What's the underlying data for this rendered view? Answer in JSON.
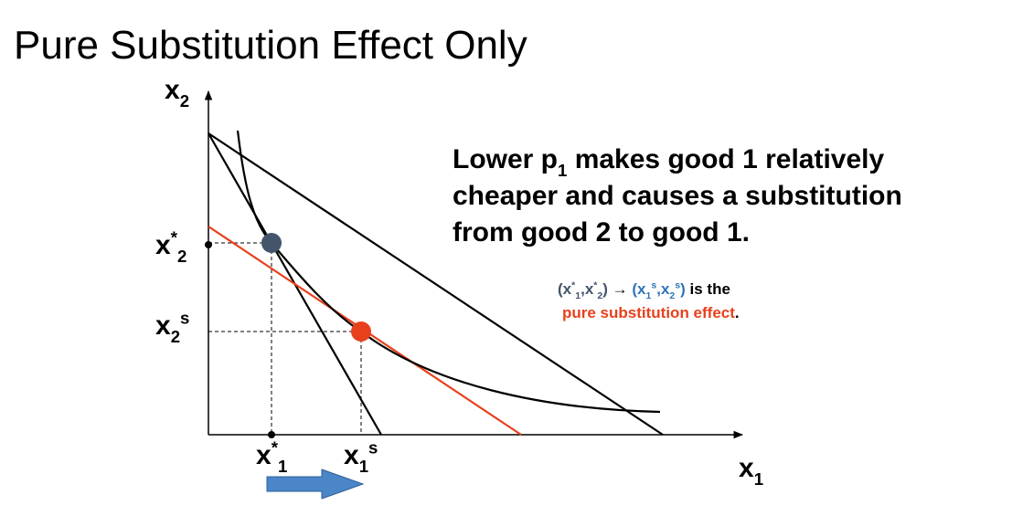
{
  "title": "Pure Substitution Effect Only",
  "axis_labels": {
    "y": {
      "segments": [
        {
          "text": "x"
        },
        {
          "text": "2",
          "shift": "sub"
        }
      ]
    },
    "x": {
      "segments": [
        {
          "text": "x"
        },
        {
          "text": "1",
          "shift": "sub"
        }
      ]
    }
  },
  "point_labels": {
    "x2_star": {
      "segments": [
        {
          "text": "x"
        },
        {
          "text": "*",
          "shift": "sup"
        },
        {
          "text": "2",
          "shift": "sub"
        }
      ]
    },
    "x2_s": {
      "segments": [
        {
          "text": "x"
        },
        {
          "text": "2",
          "shift": "sub"
        },
        {
          "text": "s",
          "shift": "sup"
        }
      ]
    },
    "x1_star": {
      "segments": [
        {
          "text": "x"
        },
        {
          "text": "*",
          "shift": "sup"
        },
        {
          "text": "1",
          "shift": "sub"
        }
      ]
    },
    "x1_s": {
      "segments": [
        {
          "text": "x"
        },
        {
          "text": "1",
          "shift": "sub"
        },
        {
          "text": "s",
          "shift": "sup"
        }
      ]
    }
  },
  "explanation": [
    {
      "segments": [
        {
          "text": "Lower p"
        },
        {
          "text": "1",
          "shift": "sub"
        },
        {
          "text": " makes good 1 relatively"
        }
      ]
    },
    {
      "segments": [
        {
          "text": "cheaper and causes a substitution"
        }
      ]
    },
    {
      "segments": [
        {
          "text": "from good 2 to good 1."
        }
      ]
    }
  ],
  "note": [
    {
      "segments": [
        {
          "text": "(x",
          "color": "#44546a"
        },
        {
          "text": "*",
          "shift": "sup",
          "color": "#44546a"
        },
        {
          "text": "1",
          "shift": "sub",
          "color": "#44546a"
        },
        {
          "text": ",x",
          "color": "#44546a"
        },
        {
          "text": "*",
          "shift": "sup",
          "color": "#44546a"
        },
        {
          "text": "2",
          "shift": "sub",
          "color": "#44546a"
        },
        {
          "text": ")",
          "color": "#44546a"
        },
        {
          "text": " → ",
          "color": "#000000"
        },
        {
          "text": "(x",
          "color": "#2e75b6"
        },
        {
          "text": "1",
          "shift": "sub",
          "color": "#2e75b6"
        },
        {
          "text": "s",
          "shift": "sup",
          "color": "#2e75b6"
        },
        {
          "text": ",x",
          "color": "#2e75b6"
        },
        {
          "text": "2",
          "shift": "sub",
          "color": "#2e75b6"
        },
        {
          "text": "s",
          "shift": "sup",
          "color": "#2e75b6"
        },
        {
          "text": ")",
          "color": "#2e75b6"
        },
        {
          "text": " is the",
          "color": "#000000"
        }
      ]
    },
    {
      "segments": [
        {
          "text": "pure substitution effect",
          "color": "#e8401c"
        },
        {
          "text": ".",
          "color": "#000000"
        }
      ]
    }
  ]
}
